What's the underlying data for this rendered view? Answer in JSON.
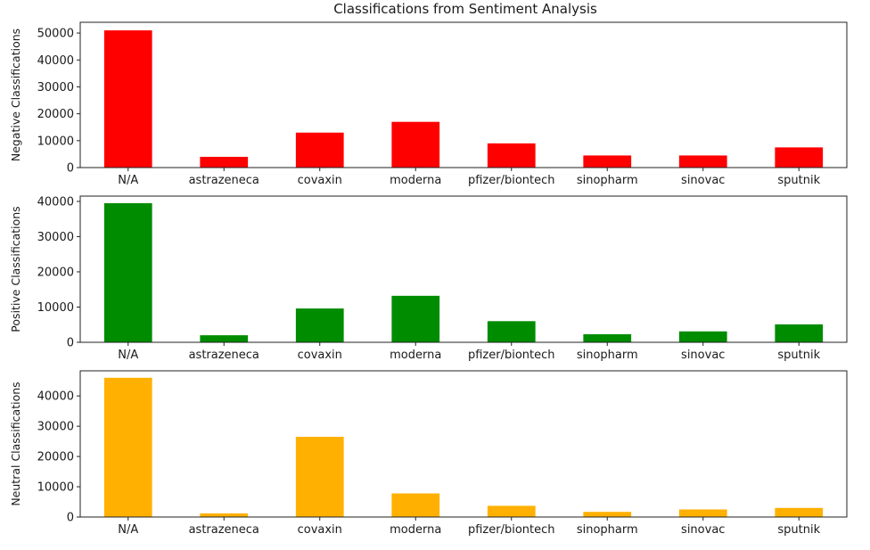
{
  "title": "Classifications from Sentiment Analysis",
  "chart_data": [
    {
      "type": "bar",
      "title": "Classifications from Sentiment Analysis",
      "xlabel": "",
      "ylabel": "Negative Classifications",
      "categories": [
        "N/A",
        "astrazeneca",
        "covaxin",
        "moderna",
        "pfizer/biontech",
        "sinopharm",
        "sinovac",
        "sputnik"
      ],
      "values": [
        51000,
        4000,
        13000,
        17000,
        9000,
        4500,
        4500,
        7500
      ],
      "ylim": [
        0,
        54000
      ],
      "yticks": [
        0,
        10000,
        20000,
        30000,
        40000,
        50000
      ],
      "color": "#ff0000",
      "grid": false,
      "legend": "none"
    },
    {
      "type": "bar",
      "xlabel": "",
      "ylabel": "Positive Classifications",
      "categories": [
        "N/A",
        "astrazeneca",
        "covaxin",
        "moderna",
        "pfizer/biontech",
        "sinopharm",
        "sinovac",
        "sputnik"
      ],
      "values": [
        39500,
        2000,
        9600,
        13200,
        6000,
        2300,
        3100,
        5100
      ],
      "ylim": [
        0,
        41500
      ],
      "yticks": [
        0,
        10000,
        20000,
        30000,
        40000
      ],
      "color": "#008c00",
      "grid": false,
      "legend": "none"
    },
    {
      "type": "bar",
      "xlabel": "",
      "ylabel": "Neutral Classifications",
      "categories": [
        "N/A",
        "astrazeneca",
        "covaxin",
        "moderna",
        "pfizer/biontech",
        "sinopharm",
        "sinovac",
        "sputnik"
      ],
      "values": [
        46000,
        1200,
        26500,
        7800,
        3700,
        1700,
        2500,
        3000
      ],
      "ylim": [
        0,
        48300
      ],
      "yticks": [
        0,
        10000,
        20000,
        30000,
        40000
      ],
      "color": "#ffb000",
      "grid": false,
      "legend": "none"
    }
  ]
}
